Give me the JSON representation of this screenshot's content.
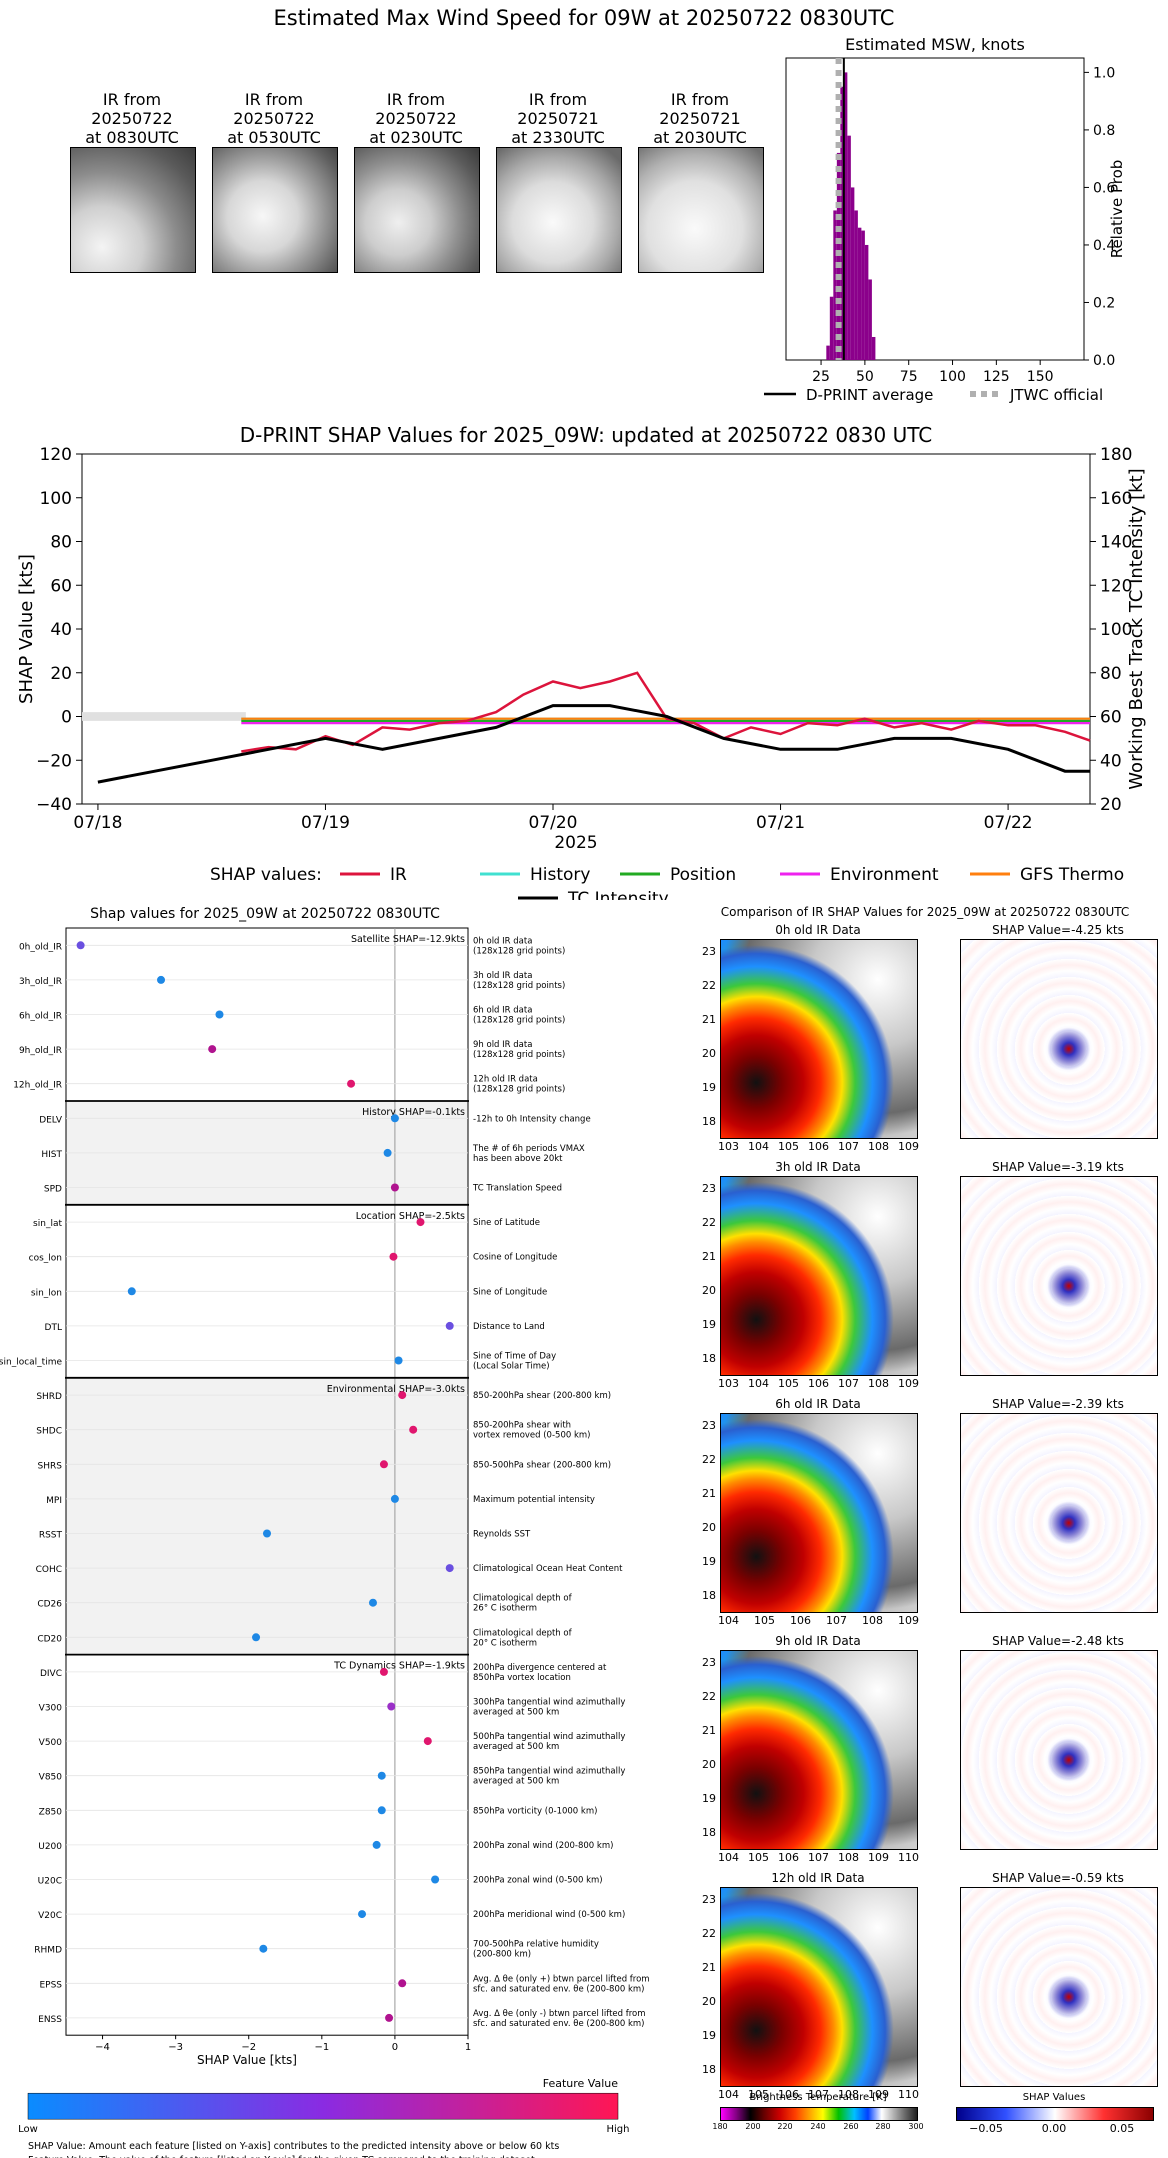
{
  "header": {
    "title": "Estimated Max Wind Speed for 09W at 20250722 0830UTC"
  },
  "ir_images": [
    {
      "label": "IR from\n20250722\nat 0830UTC"
    },
    {
      "label": "IR from\n20250722\nat 0530UTC"
    },
    {
      "label": "IR from\n20250722\nat 0230UTC"
    },
    {
      "label": "IR from\n20250721\nat 2330UTC"
    },
    {
      "label": "IR from\n20250721\nat 2030UTC"
    }
  ],
  "msw_chart": {
    "title": "Estimated MSW, knots",
    "ylabel": "Relative Prob",
    "xticks": [
      "25",
      "50",
      "75",
      "100",
      "125",
      "150"
    ],
    "yticks": [
      "0.0",
      "0.2",
      "0.4",
      "0.6",
      "0.8",
      "1.0"
    ],
    "legend": [
      "D-PRINT average",
      "JTWC official"
    ],
    "bar_color": "#8b008b"
  },
  "timeseries": {
    "title": "D-PRINT SHAP Values for 2025_09W: updated at 20250722 0830 UTC",
    "ylabel_left": "SHAP Value [kts]",
    "ylabel_right": "Working Best Track TC Intensity [kt]",
    "xlabel": "2025",
    "xticks": [
      "07/18",
      "07/19",
      "07/20",
      "07/21",
      "07/22"
    ],
    "yticks_left": [
      "120",
      "100",
      "80",
      "60",
      "40",
      "20",
      "0",
      "−20",
      "−40"
    ],
    "yticks_right": [
      "180",
      "160",
      "140",
      "120",
      "100",
      "80",
      "60",
      "40",
      "20"
    ],
    "legend_prefix": "SHAP values:",
    "legend": [
      {
        "name": "IR",
        "color": "#dc143c"
      },
      {
        "name": "History",
        "color": "#40e0d0"
      },
      {
        "name": "Position",
        "color": "#22aa22"
      },
      {
        "name": "Environment",
        "color": "#ee22ee"
      },
      {
        "name": "GFS Thermo",
        "color": "#ff7f0e"
      }
    ],
    "legend_tc": "TC Intensity"
  },
  "shap_panel": {
    "title": "Shap values for 2025_09W at 20250722 0830UTC",
    "xlabel": "SHAP Value [kts]",
    "xticks": [
      "−4",
      "−3",
      "−2",
      "−1",
      "0",
      "1"
    ],
    "groups": [
      {
        "label": "Satellite SHAP=-12.9kts",
        "shaded": false
      },
      {
        "label": "History SHAP=-0.1kts",
        "shaded": true
      },
      {
        "label": "Location SHAP=-2.5kts",
        "shaded": false
      },
      {
        "label": "Environmental SHAP=-3.0kts",
        "shaded": true
      },
      {
        "label": "TC Dynamics SHAP=-1.9kts",
        "shaded": false
      }
    ],
    "features": [
      {
        "name": "0h_old_IR",
        "desc": "0h old IR data\n(128x128 grid points)",
        "value": -4.3,
        "color": "#6a4fe0",
        "group": 0
      },
      {
        "name": "3h_old_IR",
        "desc": "3h old IR data\n(128x128 grid points)",
        "value": -3.2,
        "color": "#1e88e5",
        "group": 0
      },
      {
        "name": "6h_old_IR",
        "desc": "6h old IR data\n(128x128 grid points)",
        "value": -2.4,
        "color": "#1e88e5",
        "group": 0
      },
      {
        "name": "9h_old_IR",
        "desc": "9h old IR data\n(128x128 grid points)",
        "value": -2.5,
        "color": "#b0138f",
        "group": 0
      },
      {
        "name": "12h_old_IR",
        "desc": "12h old IR data\n(128x128 grid points)",
        "value": -0.6,
        "color": "#e0166e",
        "group": 0
      },
      {
        "name": "DELV",
        "desc": "-12h to 0h Intensity change",
        "value": 0.0,
        "color": "#1e88e5",
        "group": 1
      },
      {
        "name": "HIST",
        "desc": "The # of 6h periods VMAX\nhas been above 20kt",
        "value": -0.1,
        "color": "#1e88e5",
        "group": 1
      },
      {
        "name": "SPD",
        "desc": "TC Translation Speed",
        "value": 0.0,
        "color": "#b0138f",
        "group": 1
      },
      {
        "name": "sin_lat",
        "desc": "Sine of Latitude",
        "value": 0.35,
        "color": "#e0166e",
        "group": 2
      },
      {
        "name": "cos_lon",
        "desc": "Cosine of Longitude",
        "value": -0.02,
        "color": "#e0166e",
        "group": 2
      },
      {
        "name": "sin_lon",
        "desc": "Sine of Longitude",
        "value": -3.6,
        "color": "#1e88e5",
        "group": 2
      },
      {
        "name": "DTL",
        "desc": "Distance to Land",
        "value": 0.75,
        "color": "#6a4fe0",
        "group": 2
      },
      {
        "name": "sin_local_time",
        "desc": "Sine of Time of Day\n(Local Solar Time)",
        "value": 0.05,
        "color": "#1e88e5",
        "group": 2
      },
      {
        "name": "SHRD",
        "desc": "850-200hPa shear (200-800 km)",
        "value": 0.1,
        "color": "#e0166e",
        "group": 3
      },
      {
        "name": "SHDC",
        "desc": "850-200hPa shear with\nvortex removed (0-500 km)",
        "value": 0.25,
        "color": "#e0166e",
        "group": 3
      },
      {
        "name": "SHRS",
        "desc": "850-500hPa shear (200-800 km)",
        "value": -0.15,
        "color": "#e0166e",
        "group": 3
      },
      {
        "name": "MPI",
        "desc": "Maximum potential intensity",
        "value": 0.0,
        "color": "#1e88e5",
        "group": 3
      },
      {
        "name": "RSST",
        "desc": "Reynolds SST",
        "value": -1.75,
        "color": "#1e88e5",
        "group": 3
      },
      {
        "name": "COHC",
        "desc": "Climatological Ocean Heat Content",
        "value": 0.75,
        "color": "#6a4fe0",
        "group": 3
      },
      {
        "name": "CD26",
        "desc": "Climatological depth of\n26° C isotherm",
        "value": -0.3,
        "color": "#1e88e5",
        "group": 3
      },
      {
        "name": "CD20",
        "desc": "Climatological depth of\n20° C isotherm",
        "value": -1.9,
        "color": "#1e88e5",
        "group": 3
      },
      {
        "name": "DIVC",
        "desc": "200hPa divergence centered at\n850hPa vortex location",
        "value": -0.15,
        "color": "#e0166e",
        "group": 4
      },
      {
        "name": "V300",
        "desc": "300hPa tangential wind azimuthally\naveraged at 500 km",
        "value": -0.05,
        "color": "#9b30c8",
        "group": 4
      },
      {
        "name": "V500",
        "desc": "500hPa tangential wind azimuthally\naveraged at 500 km",
        "value": 0.45,
        "color": "#e0166e",
        "group": 4
      },
      {
        "name": "V850",
        "desc": "850hPa tangential wind azimuthally\naveraged at 500 km",
        "value": -0.18,
        "color": "#1e88e5",
        "group": 4
      },
      {
        "name": "Z850",
        "desc": "850hPa vorticity (0-1000 km)",
        "value": -0.18,
        "color": "#1e88e5",
        "group": 4
      },
      {
        "name": "U200",
        "desc": "200hPa zonal wind (200-800 km)",
        "value": -0.25,
        "color": "#1e88e5",
        "group": 4
      },
      {
        "name": "U20C",
        "desc": "200hPa zonal wind (0-500 km)",
        "value": 0.55,
        "color": "#1e88e5",
        "group": 4
      },
      {
        "name": "V20C",
        "desc": "200hPa meridional wind (0-500 km)",
        "value": -0.45,
        "color": "#1e88e5",
        "group": 4
      },
      {
        "name": "RHMD",
        "desc": "700-500hPa relative humidity\n(200-800 km)",
        "value": -1.8,
        "color": "#1e88e5",
        "group": 4
      },
      {
        "name": "EPSS",
        "desc": "Avg. Δ θe (only +) btwn parcel lifted from\nsfc. and saturated env. θe (200-800 km)",
        "value": 0.1,
        "color": "#b0138f",
        "group": 4
      },
      {
        "name": "ENSS",
        "desc": "Avg. Δ θe (only -) btwn parcel lifted from\nsfc. and saturated env. θe (200-800 km)",
        "value": -0.08,
        "color": "#b0138f",
        "group": 4
      }
    ],
    "colorbar": {
      "title": "Feature Value",
      "low": "Low",
      "high": "High"
    },
    "notes": [
      "SHAP Value: Amount each feature [listed on Y-axis] contributes to the predicted intensity above or below 60 kts",
      "Feature Value: The value of the feature [listed on Y-axis] for the given TC compared to the training dataset"
    ]
  },
  "comparison": {
    "title": "Comparison of IR SHAP Values for 2025_09W at 20250722 0830UTC",
    "rows": [
      {
        "ir_title": "0h old IR Data",
        "shap_title": "SHAP Value=-4.25 kts",
        "xticks": [
          "103",
          "104",
          "105",
          "106",
          "107",
          "108",
          "109"
        ]
      },
      {
        "ir_title": "3h old IR Data",
        "shap_title": "SHAP Value=-3.19 kts",
        "xticks": [
          "103",
          "104",
          "105",
          "106",
          "107",
          "108",
          "109"
        ]
      },
      {
        "ir_title": "6h old IR Data",
        "shap_title": "SHAP Value=-2.39 kts",
        "xticks": [
          "104",
          "105",
          "106",
          "107",
          "108",
          "109"
        ]
      },
      {
        "ir_title": "9h old IR Data",
        "shap_title": "SHAP Value=-2.48 kts",
        "xticks": [
          "104",
          "105",
          "106",
          "107",
          "108",
          "109",
          "110"
        ]
      },
      {
        "ir_title": "12h old IR Data",
        "shap_title": "SHAP Value=-0.59 kts",
        "xticks": [
          "104",
          "105",
          "106",
          "107",
          "108",
          "109",
          "110"
        ]
      }
    ],
    "yticks": [
      "23",
      "22",
      "21",
      "20",
      "19",
      "18"
    ],
    "bt_colorbar": {
      "title": "Brightness Temperature [K]",
      "ticks": [
        "180",
        "200",
        "220",
        "240",
        "260",
        "280",
        "300"
      ]
    },
    "shap_colorbar": {
      "title": "SHAP Values",
      "ticks": [
        "−0.05",
        "0.00",
        "0.05"
      ]
    }
  },
  "chart_data": [
    {
      "type": "bar",
      "title": "Estimated MSW, knots",
      "ylabel": "Relative Prob",
      "xlim": [
        5,
        175
      ],
      "ylim": [
        0,
        1.05
      ],
      "bins": [
        28,
        30,
        32,
        34,
        36,
        38,
        40,
        42,
        44,
        46,
        48,
        50,
        52,
        54
      ],
      "values": [
        0.05,
        0.22,
        0.52,
        0.72,
        0.95,
        1.0,
        0.78,
        0.6,
        0.52,
        0.46,
        0.45,
        0.4,
        0.28,
        0.08
      ],
      "dprint_average": 38,
      "jtwc_official": 35
    },
    {
      "type": "line",
      "title": "D-PRINT SHAP Values for 2025_09W: updated at 20250722 0830 UTC",
      "xlabel": "2025",
      "ylim_left": [
        -40,
        120
      ],
      "ylim_right": [
        20,
        180
      ],
      "x_days": [
        "07/18",
        "07/19",
        "07/20",
        "07/21",
        "07/22"
      ],
      "series": [
        {
          "name": "IR",
          "x": [
            18.63,
            18.75,
            18.87,
            19.0,
            19.12,
            19.25,
            19.37,
            19.5,
            19.62,
            19.75,
            19.87,
            20.0,
            20.12,
            20.25,
            20.37,
            20.5,
            20.62,
            20.75,
            20.87,
            21.0,
            21.12,
            21.25,
            21.37,
            21.5,
            21.62,
            21.75,
            21.87,
            22.0,
            22.12,
            22.25,
            22.36
          ],
          "y": [
            -16,
            -14,
            -15,
            -9,
            -13,
            -5,
            -6,
            -3,
            -2,
            2,
            10,
            16,
            13,
            16,
            20,
            -1,
            -3,
            -10,
            -5,
            -8,
            -3,
            -4,
            -1,
            -5,
            -3,
            -6,
            -2,
            -4,
            -4,
            -7,
            -11
          ]
        },
        {
          "name": "History",
          "x": [
            18.63,
            22.36
          ],
          "y": [
            -1,
            -1
          ]
        },
        {
          "name": "Position",
          "x": [
            18.63,
            22.36
          ],
          "y": [
            -2,
            -2
          ]
        },
        {
          "name": "Environment",
          "x": [
            18.63,
            22.36
          ],
          "y": [
            -3,
            -3
          ]
        },
        {
          "name": "GFS Thermo",
          "x": [
            18.63,
            22.36
          ],
          "y": [
            -1,
            -1
          ]
        },
        {
          "name": "TC Intensity",
          "axis": "right",
          "x": [
            18.0,
            18.25,
            18.5,
            18.75,
            19.0,
            19.25,
            19.5,
            19.75,
            20.0,
            20.25,
            20.5,
            20.75,
            21.0,
            21.25,
            21.5,
            21.75,
            22.0,
            22.25,
            22.36
          ],
          "y": [
            30,
            35,
            40,
            45,
            50,
            45,
            50,
            55,
            65,
            65,
            60,
            50,
            45,
            45,
            50,
            50,
            45,
            35,
            35
          ]
        }
      ]
    }
  ]
}
